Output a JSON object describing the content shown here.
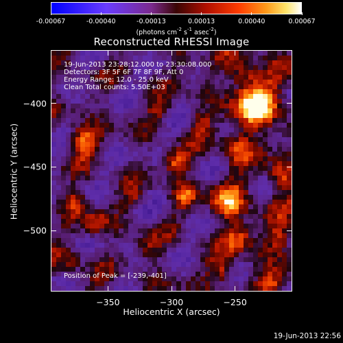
{
  "colorbar": {
    "ticks": [
      "-0.00067",
      "-0.00040",
      "-0.00013",
      "0.00013",
      "0.00040",
      "0.00067"
    ],
    "units_main": "(photons cm",
    "units_exp1": "-2",
    "units_mid": " s",
    "units_exp2": "-1",
    "units_mid2": " asec",
    "units_exp3": "-2",
    "units_close": ")"
  },
  "title": "Reconstructed RHESSI Image",
  "info": {
    "time": "19-Jun-2013 23:28:12.000 to 23:30:08.000",
    "detectors": "Detectors: 3F 5F 6F 7F 8F 9F, Att 0",
    "energy": "Energy Range: 12.0 - 25.0 keV",
    "clean": "Clean    Total counts: 5.50E+03",
    "peak": "Position of Peak = [-239,-401]"
  },
  "chart_data": {
    "type": "heatmap",
    "title": "Reconstructed RHESSI Image",
    "xlabel": "Heliocentric X (arcsec)",
    "ylabel": "Heliocentric Y (arcsec)",
    "x_ticks": [
      "-350",
      "-300",
      "-250"
    ],
    "y_ticks": [
      "-400",
      "-450",
      "-500"
    ],
    "x_tick_values": [
      -350,
      -300,
      -250
    ],
    "y_tick_values": [
      -400,
      -450,
      -500
    ],
    "xlim": [
      -395,
      -205
    ],
    "ylim": [
      -548,
      -358
    ],
    "colorbar_range": [
      -0.00067,
      0.00067
    ],
    "colormap": [
      "#0000ff",
      "#6a3cff",
      "#7b2a8e",
      "#3a0505",
      "#b01000",
      "#ff3c00",
      "#ff9a1a",
      "#ffe56b",
      "#ffffff"
    ],
    "peak_position": [
      -239,
      -401
    ]
  },
  "timestamp": "19-Jun-2013 22:56"
}
